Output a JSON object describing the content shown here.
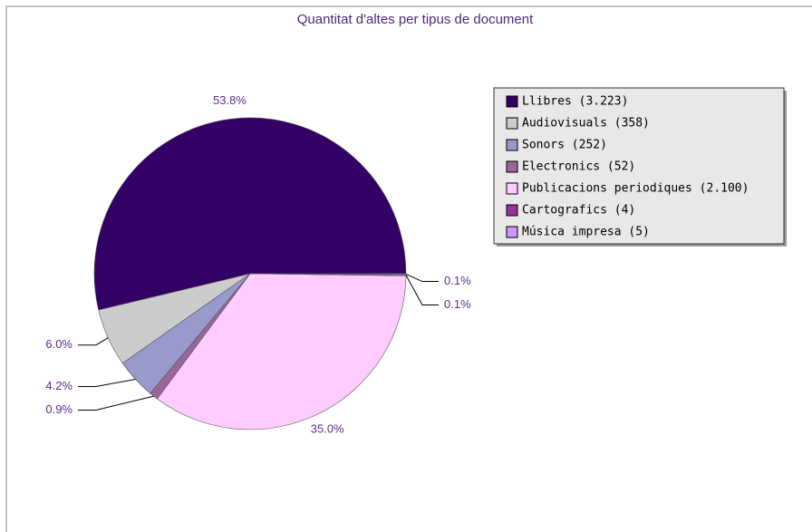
{
  "chart_data": {
    "type": "pie",
    "title": "Quantitat d'altes per tipus de document",
    "categories": [
      "Llibres (3.223)",
      "Audiovisuals (358)",
      "Sonors (252)",
      "Electronics (52)",
      "Publicacions periodiques (2.100)",
      "Cartografics (4)",
      "Música impresa (5)"
    ],
    "values": [
      53.8,
      6.0,
      4.2,
      0.9,
      35.0,
      0.1,
      0.1
    ],
    "value_labels": [
      "53.8%",
      "6.0%",
      "4.2%",
      "0.9%",
      "35.0%",
      "0.1%",
      "0.1%"
    ],
    "colors": [
      "#330066",
      "#cccccc",
      "#9999cc",
      "#996699",
      "#ffccff",
      "#993399",
      "#cc99ff"
    ]
  }
}
